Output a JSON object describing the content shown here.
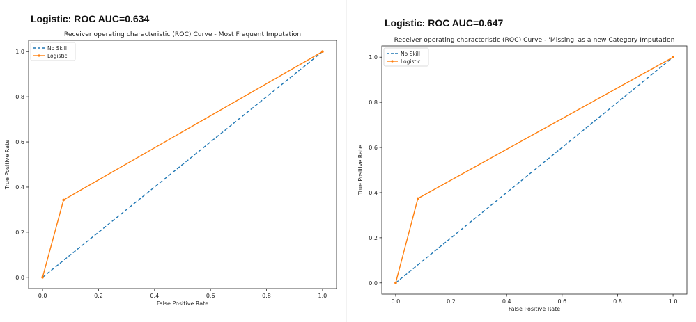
{
  "panels": [
    {
      "header": "Logistic: ROC AUC=0.634"
    },
    {
      "header": "Logistic: ROC AUC=0.647"
    }
  ],
  "chart_data": [
    {
      "type": "line",
      "title": "Receiver operating characteristic (ROC) Curve - Most Frequent Imputation",
      "xlabel": "False Positive Rate",
      "ylabel": "True Positive Rate",
      "xlim": [
        -0.05,
        1.05
      ],
      "ylim": [
        -0.05,
        1.05
      ],
      "xticks": [
        "0.0",
        "0.2",
        "0.4",
        "0.6",
        "0.8",
        "1.0"
      ],
      "yticks": [
        "0.0",
        "0.2",
        "0.4",
        "0.6",
        "0.8",
        "1.0"
      ],
      "grid": false,
      "legend": "top-left",
      "series": [
        {
          "name": "No Skill",
          "x": [
            0,
            1
          ],
          "y": [
            0,
            1
          ],
          "color": "#1f77b4",
          "style": "dashed",
          "marker": false
        },
        {
          "name": "Logistic",
          "x": [
            0,
            0.075,
            1
          ],
          "y": [
            0,
            0.343,
            1
          ],
          "color": "#ff7f0e",
          "style": "solid",
          "marker": true
        }
      ]
    },
    {
      "type": "line",
      "title": "Receiver operating characteristic (ROC) Curve - 'Missing' as a new Category Imputation",
      "xlabel": "False Positive Rate",
      "ylabel": "True Positive Rate",
      "xlim": [
        -0.05,
        1.05
      ],
      "ylim": [
        -0.05,
        1.05
      ],
      "xticks": [
        "0.0",
        "0.2",
        "0.4",
        "0.6",
        "0.8",
        "1.0"
      ],
      "yticks": [
        "0.0",
        "0.2",
        "0.4",
        "0.6",
        "0.8",
        "1.0"
      ],
      "grid": false,
      "legend": "top-left",
      "series": [
        {
          "name": "No Skill",
          "x": [
            0,
            1
          ],
          "y": [
            0,
            1
          ],
          "color": "#1f77b4",
          "style": "dashed",
          "marker": false
        },
        {
          "name": "Logistic",
          "x": [
            0,
            0.08,
            1
          ],
          "y": [
            0,
            0.374,
            1
          ],
          "color": "#ff7f0e",
          "style": "solid",
          "marker": true
        }
      ]
    }
  ]
}
